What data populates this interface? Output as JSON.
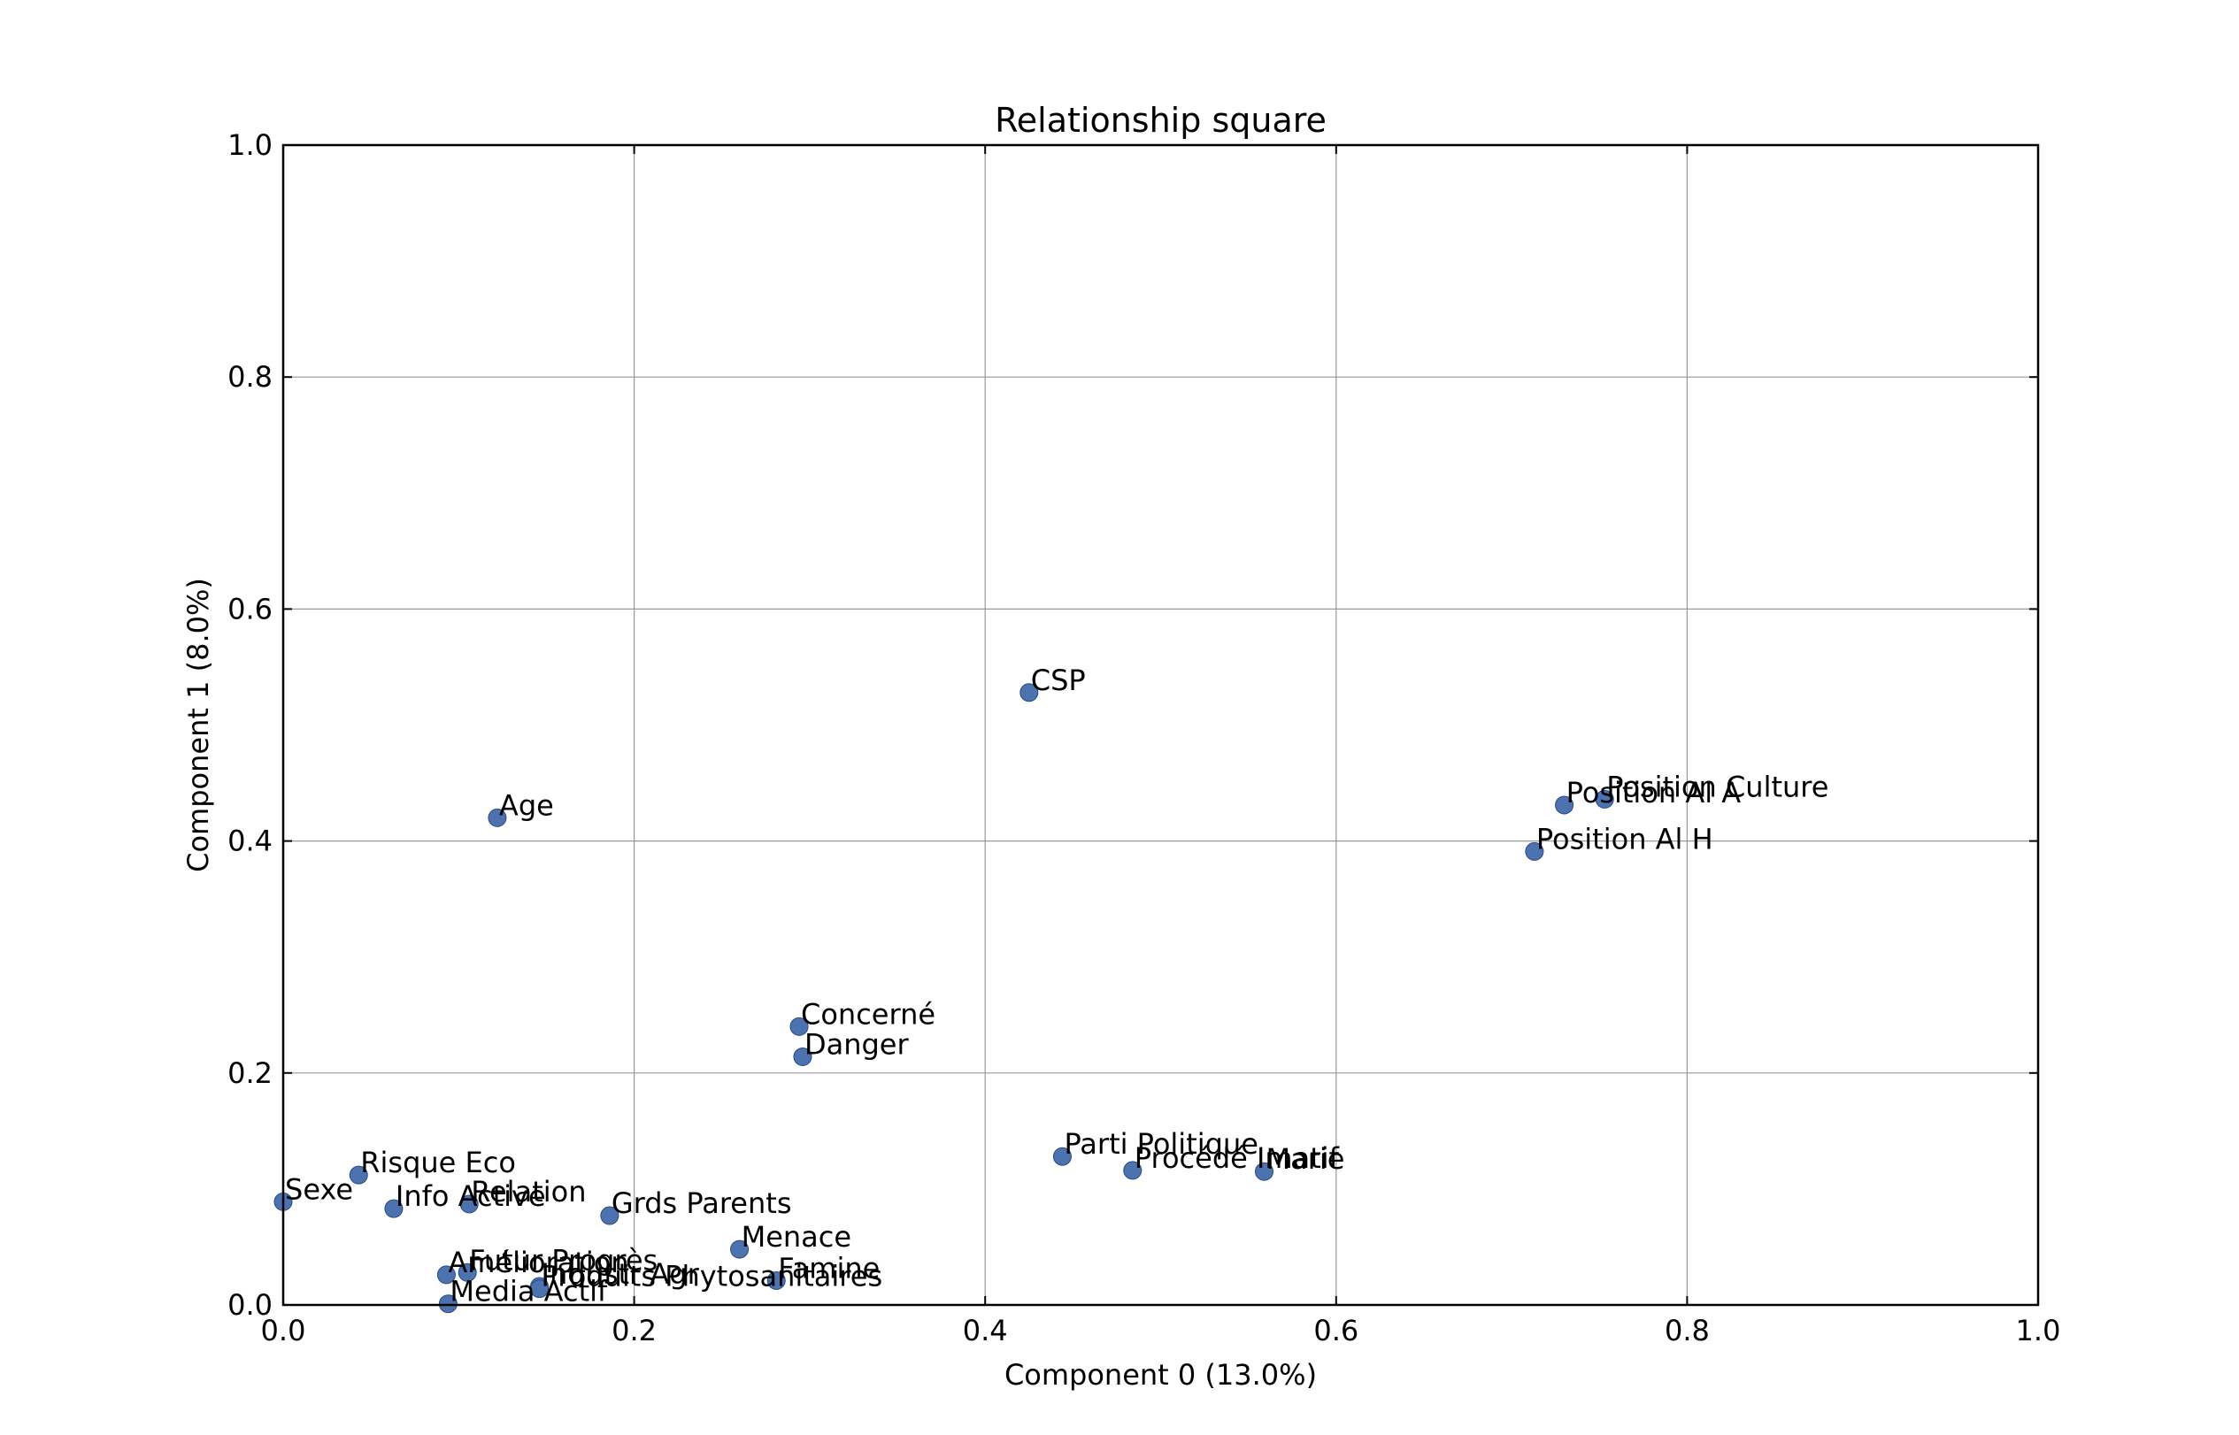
{
  "chart_data": {
    "type": "scatter",
    "title": "Relationship square",
    "xlabel": "Component 0 (13.0%)",
    "ylabel": "Component 1 (8.0%)",
    "xlim": [
      0,
      1
    ],
    "ylim": [
      0,
      1
    ],
    "xticks": [
      "0.0",
      "0.2",
      "0.4",
      "0.6",
      "0.8",
      "1.0"
    ],
    "yticks": [
      "0.0",
      "0.2",
      "0.4",
      "0.6",
      "0.8",
      "1.0"
    ],
    "grid": true,
    "marker_color": "#4c72b0",
    "points": [
      {
        "label": "CSP",
        "x": 0.425,
        "y": 0.528
      },
      {
        "label": "Age",
        "x": 0.122,
        "y": 0.42
      },
      {
        "label": "Position Culture",
        "x": 0.753,
        "y": 0.436
      },
      {
        "label": "Position Al A",
        "x": 0.73,
        "y": 0.431
      },
      {
        "label": "Position Al H",
        "x": 0.713,
        "y": 0.391
      },
      {
        "label": "Concerné",
        "x": 0.294,
        "y": 0.24
      },
      {
        "label": "Danger",
        "x": 0.296,
        "y": 0.214
      },
      {
        "label": "Parti Politique",
        "x": 0.444,
        "y": 0.128
      },
      {
        "label": "Procédé Imatif",
        "x": 0.484,
        "y": 0.116
      },
      {
        "label": "Marie",
        "x": 0.559,
        "y": 0.115
      },
      {
        "label": "Risque Eco",
        "x": 0.043,
        "y": 0.112
      },
      {
        "label": "Sexe",
        "x": 0.0,
        "y": 0.089
      },
      {
        "label": "Info Active",
        "x": 0.063,
        "y": 0.083
      },
      {
        "label": "Relation",
        "x": 0.106,
        "y": 0.087
      },
      {
        "label": "Grds Parents",
        "x": 0.186,
        "y": 0.077
      },
      {
        "label": "Menace",
        "x": 0.26,
        "y": 0.048
      },
      {
        "label": "Amélioration",
        "x": 0.093,
        "y": 0.026
      },
      {
        "label": "Futur Progrès",
        "x": 0.105,
        "y": 0.028
      },
      {
        "label": "Industr Agr",
        "x": 0.146,
        "y": 0.016
      },
      {
        "label": "Produits Phytosanitaires",
        "x": 0.146,
        "y": 0.014
      },
      {
        "label": "Famine",
        "x": 0.281,
        "y": 0.021
      },
      {
        "label": "Media Actif",
        "x": 0.094,
        "y": 0.001
      }
    ]
  }
}
